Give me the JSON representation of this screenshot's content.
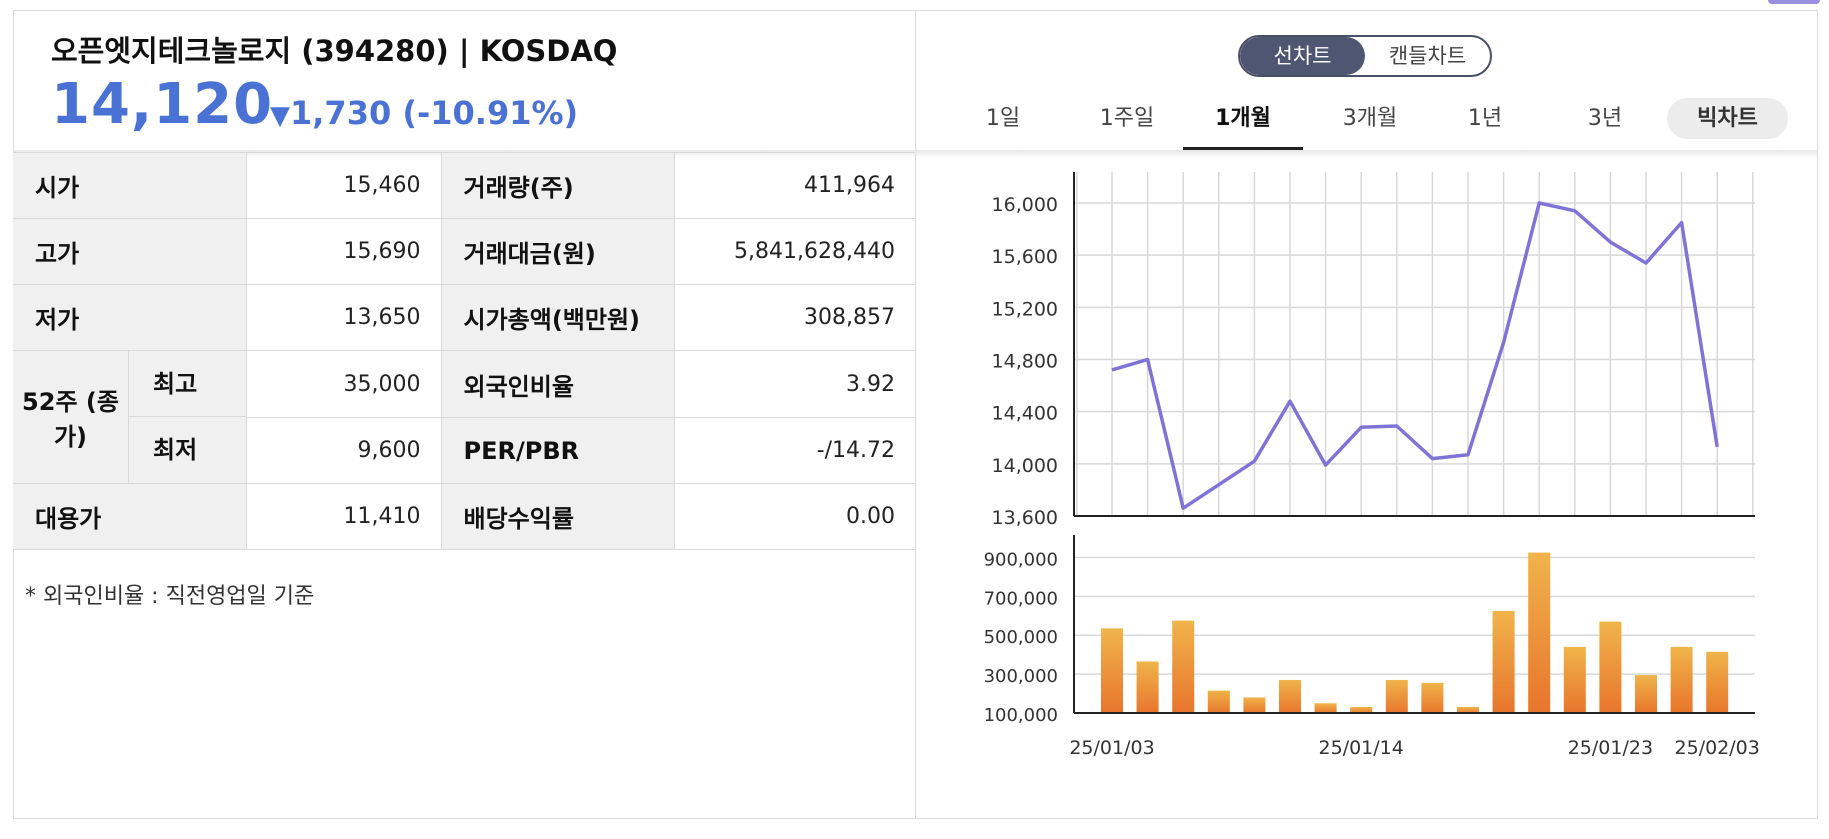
{
  "header": {
    "stock_name": "오픈엣지테크놀로지 (394280) | KOSDAQ",
    "price": "14,120",
    "change_arrow": "▼",
    "change": "1,730 (-10.91%)",
    "price_color": "#4a72d4"
  },
  "table": {
    "open_label": "시가",
    "open_value": "15,460",
    "high_label": "고가",
    "high_value": "15,690",
    "low_label": "저가",
    "low_value": "13,650",
    "w52_label": "52주 (종가)",
    "w52_high_label": "최고",
    "w52_high_value": "35,000",
    "w52_low_label": "최저",
    "w52_low_value": "9,600",
    "substitute_label": "대용가",
    "substitute_value": "11,410",
    "volume_label": "거래량(주)",
    "volume_value": "411,964",
    "amount_label": "거래대금(원)",
    "amount_value": "5,841,628,440",
    "market_cap_label": "시가총액(백만원)",
    "market_cap_value": "308,857",
    "foreign_label": "외국인비율",
    "foreign_value": "3.92",
    "per_pbr_label": "PER/PBR",
    "per_pbr_value": "-/14.72",
    "dividend_label": "배당수익률",
    "dividend_value": "0.00"
  },
  "footnote": "* 외국인비율 : 직전영업일 기준",
  "toggle": {
    "line_label": "선차트",
    "candle_label": "캔들차트",
    "active": "line"
  },
  "tabs": {
    "t1": "1일",
    "t2": "1주일",
    "t3": "1개월",
    "t4": "3개월",
    "t5": "1년",
    "t6": "3년",
    "active": "1개월",
    "big_chart": "빅차트"
  },
  "chart_data": [
    {
      "type": "line",
      "series": [
        {
          "values": [
            14720,
            14800,
            13660,
            13840,
            14020,
            14480,
            13990,
            14280,
            14290,
            14040,
            14070,
            14930,
            16000,
            15940,
            15700,
            15540,
            15850,
            14130
          ]
        }
      ],
      "yticks": [
        "16,000",
        "15,600",
        "15,200",
        "14,800",
        "14,400",
        "14,000",
        "13,600"
      ],
      "ylim": [
        13600,
        16000
      ],
      "grid": true,
      "line_color": "#7f74d6"
    },
    {
      "type": "bar",
      "series": [
        {
          "values": [
            535000,
            365000,
            575000,
            215000,
            180000,
            270000,
            150000,
            120000,
            270000,
            255000,
            120000,
            625000,
            925000,
            440000,
            570000,
            295000,
            440000,
            415000
          ]
        }
      ],
      "yticks": [
        "900,000",
        "700,000",
        "500,000",
        "300,000",
        "100,000"
      ],
      "ylim": [
        100000,
        1000000
      ],
      "x_labels": [
        "25/01/03",
        "25/01/14",
        "25/01/23",
        "25/02/03"
      ],
      "bar_color_top": "#f0b44a",
      "bar_color_bottom": "#e8742c"
    }
  ]
}
